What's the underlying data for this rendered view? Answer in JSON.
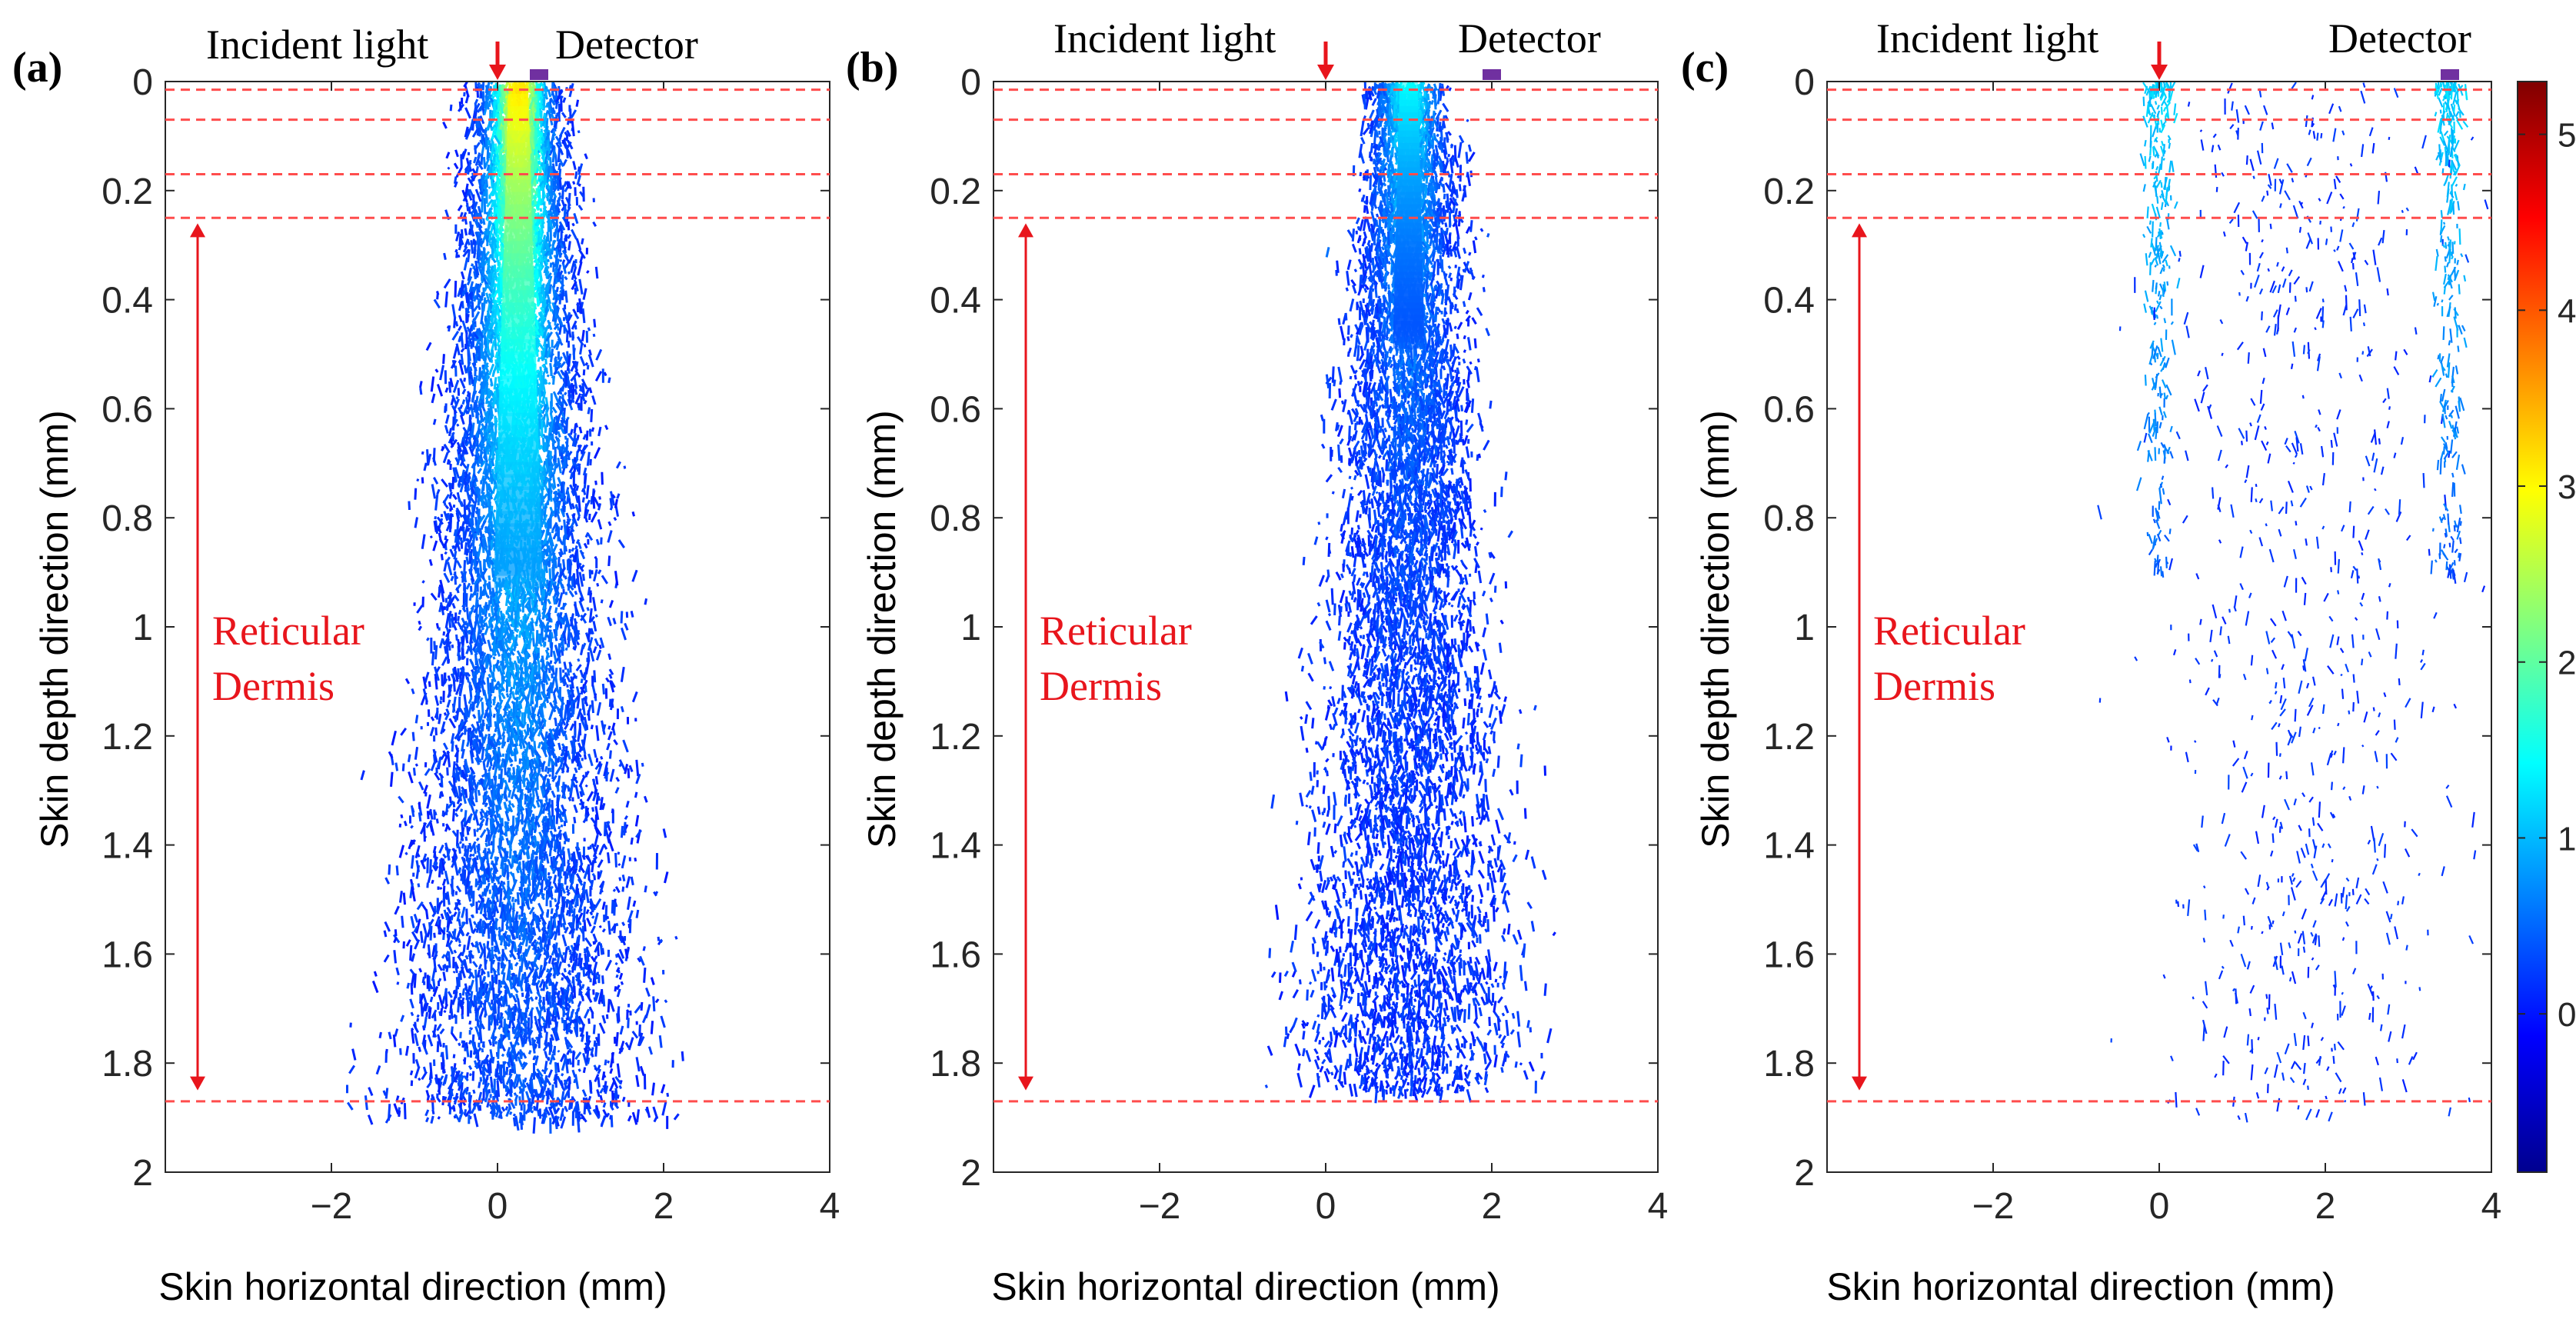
{
  "figure": {
    "description_units": "mm",
    "colorbar": {
      "ticks": [
        0,
        1,
        2,
        3,
        4,
        5
      ],
      "range": [
        -0.9,
        5.3
      ],
      "colormap": "jet",
      "colors": [
        "#00008f",
        "#0000ff",
        "#0080ff",
        "#00ffff",
        "#80ff80",
        "#ffff00",
        "#ff8000",
        "#ff0000",
        "#800000"
      ]
    },
    "reference_line_color": "#ff4d4d",
    "arrow_color": "#e8151c",
    "detector_color": "#7030a0"
  },
  "chart_data": [
    {
      "type": "heatmap",
      "panel_label": "(a)",
      "title": "",
      "xlabel": "Skin horizontal direction (mm)",
      "ylabel": "Skin depth direction (mm)",
      "xlim": [
        -4,
        4
      ],
      "ylim": [
        0,
        2
      ],
      "y_reversed": true,
      "xticks": [
        -2,
        0,
        2,
        4
      ],
      "xtick_labels": [
        "−2",
        "0",
        "2",
        "4"
      ],
      "yticks": [
        0,
        0.2,
        0.4,
        0.6,
        0.8,
        1,
        1.2,
        1.4,
        1.6,
        1.8,
        2
      ],
      "ytick_labels": [
        "0",
        "0.2",
        "0.4",
        "0.6",
        "0.8",
        "1",
        "1.2",
        "1.4",
        "1.6",
        "1.8",
        "2"
      ],
      "layer_boundaries_depth": [
        0.015,
        0.07,
        0.17,
        0.25,
        1.87
      ],
      "annotations": {
        "incident_light": {
          "text": "Incident light",
          "x": 0
        },
        "detector": {
          "text": "Detector",
          "x": 0.5
        },
        "region_line1": "Reticular",
        "region_line2": "Dermis",
        "region_arrow_depth": [
          0.26,
          1.85
        ]
      },
      "photon_distribution": {
        "source_x": 0,
        "detector_x": 0.5,
        "peak_value": 3.1,
        "spread_mm": 1.1,
        "max_depth_mm": 1.9,
        "density": "high"
      }
    },
    {
      "type": "heatmap",
      "panel_label": "(b)",
      "title": "",
      "xlabel": "Skin horizontal direction (mm)",
      "ylabel": "Skin depth direction (mm)",
      "xlim": [
        -4,
        4
      ],
      "ylim": [
        0,
        2
      ],
      "y_reversed": true,
      "xticks": [
        -2,
        0,
        2,
        4
      ],
      "xtick_labels": [
        "−2",
        "0",
        "2",
        "4"
      ],
      "yticks": [
        0,
        0.2,
        0.4,
        0.6,
        0.8,
        1,
        1.2,
        1.4,
        1.6,
        1.8,
        2
      ],
      "ytick_labels": [
        "0",
        "0.2",
        "0.4",
        "0.6",
        "0.8",
        "1",
        "1.2",
        "1.4",
        "1.6",
        "1.8",
        "2"
      ],
      "layer_boundaries_depth": [
        0.015,
        0.07,
        0.17,
        0.25,
        1.87
      ],
      "annotations": {
        "incident_light": {
          "text": "Incident light",
          "x": 0
        },
        "detector": {
          "text": "Detector",
          "x": 2
        },
        "region_line1": "Reticular",
        "region_line2": "Dermis",
        "region_arrow_depth": [
          0.26,
          1.85
        ]
      },
      "photon_distribution": {
        "source_x": 0,
        "detector_x": 2,
        "peak_value": 1.4,
        "spread_mm": 1.0,
        "max_depth_mm": 1.85,
        "density": "medium"
      }
    },
    {
      "type": "heatmap",
      "panel_label": "(c)",
      "title": "",
      "xlabel": "Skin horizontal direction (mm)",
      "ylabel": "Skin depth direction (mm)",
      "xlim": [
        -4,
        4
      ],
      "ylim": [
        0,
        2
      ],
      "y_reversed": true,
      "xticks": [
        -2,
        0,
        2,
        4
      ],
      "xtick_labels": [
        "−2",
        "0",
        "2",
        "4"
      ],
      "yticks": [
        0,
        0.2,
        0.4,
        0.6,
        0.8,
        1,
        1.2,
        1.4,
        1.6,
        1.8,
        2
      ],
      "ytick_labels": [
        "0",
        "0.2",
        "0.4",
        "0.6",
        "0.8",
        "1",
        "1.2",
        "1.4",
        "1.6",
        "1.8",
        "2"
      ],
      "layer_boundaries_depth": [
        0.015,
        0.07,
        0.17,
        0.25,
        1.87
      ],
      "annotations": {
        "incident_light": {
          "text": "Incident light",
          "x": 0
        },
        "detector": {
          "text": "Detector",
          "x": 3.5
        },
        "region_line1": "Reticular",
        "region_line2": "Dermis",
        "region_arrow_depth": [
          0.26,
          1.85
        ]
      },
      "photon_distribution": {
        "source_x": 0,
        "detector_x": 3.5,
        "peak_value": 1.2,
        "spread_mm": 1.1,
        "max_depth_mm": 1.9,
        "density": "sparse"
      }
    }
  ]
}
